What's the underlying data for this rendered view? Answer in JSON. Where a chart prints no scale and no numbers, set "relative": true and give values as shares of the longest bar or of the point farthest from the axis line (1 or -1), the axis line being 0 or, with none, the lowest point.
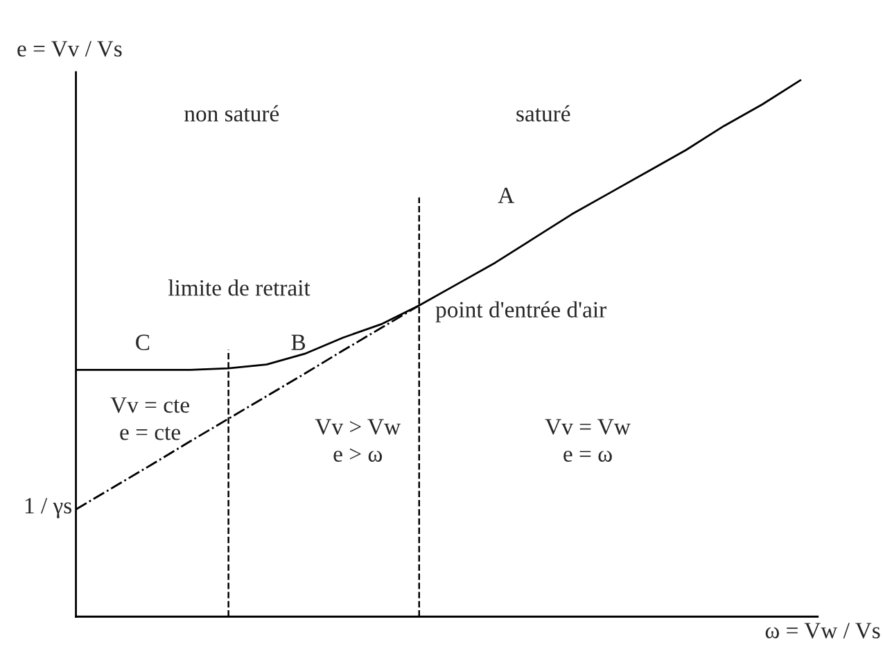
{
  "chart_data": {
    "type": "line",
    "relative": true,
    "xlabel": "ω = Vw / Vs",
    "ylabel": "e = Vv / Vs",
    "categories": [
      null,
      null,
      null,
      null,
      null,
      null,
      null,
      null,
      null,
      null,
      null,
      null,
      null,
      null,
      null,
      null,
      null,
      null,
      null,
      null
    ],
    "series": [
      {
        "color": "#000000",
        "line_style": "solid",
        "values": [
          0.46,
          0.46,
          0.46,
          0.46,
          0.463,
          0.47,
          0.49,
          0.52,
          0.545,
          0.58,
          0.62,
          0.66,
          0.705,
          0.75,
          0.79,
          0.83,
          0.87,
          0.915,
          0.955,
          1.0
        ]
      },
      {
        "color": "#000000",
        "line_style": "dashdot",
        "values": [
          0.2,
          0.242,
          0.284,
          0.327,
          0.369,
          0.411,
          0.453,
          0.496,
          0.538,
          0.58,
          null,
          null,
          null,
          null,
          null,
          null,
          null,
          null,
          null,
          null
        ]
      }
    ],
    "annotations": [
      "non saturé",
      "saturé",
      "A",
      "limite de retrait",
      "C",
      "B",
      "point d'entrée d'air",
      "Vv = cte",
      "e = cte",
      "Vv > Vw",
      "e > ω",
      "Vv = Vw",
      "e = ω",
      "1 / γs"
    ]
  }
}
